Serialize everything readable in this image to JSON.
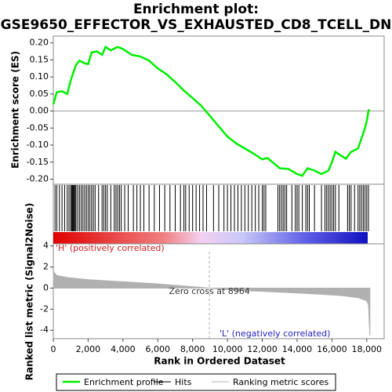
{
  "chart_data": [
    {
      "type": "line",
      "title": [
        "Enrichment plot:",
        "GSE9650_EFFECTOR_VS_EXHAUSTED_CD8_TCELL_DN"
      ],
      "ylabel": "Enrichment score (ES)",
      "x": [
        0,
        200,
        500,
        800,
        1000,
        1300,
        1500,
        1800,
        2000,
        2200,
        2500,
        2800,
        3000,
        3300,
        3700,
        4000,
        4500,
        5000,
        5500,
        6000,
        6500,
        7000,
        7500,
        8000,
        8500,
        9000,
        9500,
        10000,
        10500,
        11000,
        11500,
        12000,
        12300,
        12700,
        13000,
        13500,
        14000,
        14300,
        14600,
        15000,
        15400,
        15800,
        16000,
        16200,
        16500,
        16800,
        17100,
        17500,
        17700,
        17900,
        18000,
        18100,
        18150
      ],
      "series": [
        {
          "name": "Enrichment profile",
          "color": "#00ee00",
          "values": [
            0.02,
            0.055,
            0.058,
            0.05,
            0.09,
            0.135,
            0.148,
            0.14,
            0.138,
            0.172,
            0.175,
            0.165,
            0.188,
            0.178,
            0.188,
            0.182,
            0.165,
            0.16,
            0.148,
            0.125,
            0.108,
            0.085,
            0.06,
            0.038,
            0.015,
            -0.015,
            -0.045,
            -0.075,
            -0.095,
            -0.11,
            -0.125,
            -0.142,
            -0.138,
            -0.155,
            -0.168,
            -0.17,
            -0.185,
            -0.19,
            -0.168,
            -0.175,
            -0.185,
            -0.175,
            -0.15,
            -0.12,
            -0.13,
            -0.14,
            -0.12,
            -0.11,
            -0.08,
            -0.05,
            -0.03,
            0.0,
            0.005
          ]
        }
      ],
      "xlim": [
        0,
        19000
      ],
      "ylim": [
        -0.215,
        0.22
      ],
      "yticks": [
        {
          "value": -0.2,
          "label": "-0.20"
        },
        {
          "value": -0.15,
          "label": "-0.15"
        },
        {
          "value": -0.1,
          "label": "-0.10"
        },
        {
          "value": -0.05,
          "label": "-0.05"
        },
        {
          "value": 0,
          "label": "0.00"
        },
        {
          "value": 0.05,
          "label": "0.05"
        },
        {
          "value": 0.1,
          "label": "0.10"
        },
        {
          "value": 0.15,
          "label": "0.15"
        },
        {
          "value": 0.2,
          "label": "0.20"
        }
      ],
      "zero_line": true
    },
    {
      "type": "hits",
      "x": [
        100,
        200,
        350,
        500,
        650,
        800,
        900,
        1000,
        1050,
        1100,
        1150,
        1200,
        1250,
        1300,
        1400,
        1500,
        1600,
        1700,
        1800,
        1900,
        2000,
        2100,
        2200,
        2300,
        2400,
        2600,
        2800,
        2900,
        3000,
        3100,
        3300,
        3500,
        3600,
        3700,
        3800,
        3900,
        4100,
        4300,
        4600,
        4800,
        5000,
        5200,
        5500,
        5800,
        6100,
        6400,
        6700,
        7000,
        7300,
        7500,
        7600,
        7800,
        8000,
        8200,
        8400,
        8600,
        8800,
        9200,
        9500,
        9800,
        10000,
        10200,
        10400,
        10600,
        10800,
        11000,
        11200,
        11400,
        11600,
        11800,
        12000,
        12100,
        12200,
        12900,
        13000,
        13100,
        13200,
        13300,
        13400,
        13700,
        13900,
        14000,
        14100,
        14300,
        14500,
        14600,
        14700,
        15000,
        15400,
        15600,
        15700,
        15800,
        15900,
        16000,
        16100,
        16200,
        16400,
        16900,
        17000,
        17100,
        17300,
        17500,
        17600,
        17700,
        17800,
        17900,
        18000,
        18100
      ],
      "series": [
        {
          "name": "Hits",
          "color": "#000000"
        }
      ],
      "xlim": [
        0,
        19000
      ]
    },
    {
      "type": "area",
      "xlabel": "Rank in Ordered Dataset",
      "ylabel": "Ranked list metric (Signal2Noise)",
      "x": [
        0,
        200,
        800,
        2000,
        4000,
        6000,
        7500,
        8964,
        10500,
        12500,
        14500,
        16500,
        17500,
        18000,
        18100,
        18180
      ],
      "series": [
        {
          "name": "Ranking metric scores",
          "color": "#b0b0b0",
          "values": [
            1.6,
            1.2,
            1.0,
            0.8,
            0.6,
            0.4,
            0.2,
            0,
            -0.2,
            -0.35,
            -0.5,
            -0.7,
            -0.9,
            -1.2,
            -1.6,
            -4.5
          ]
        }
      ],
      "xlim": [
        0,
        19000
      ],
      "xticks": [
        0,
        {
          "value": 2000,
          "label": "2,000"
        },
        {
          "value": 4000,
          "label": "4,000"
        },
        {
          "value": 6000,
          "label": "6,000"
        },
        {
          "value": 8000,
          "label": "8,000"
        },
        {
          "value": 10000,
          "label": "10,000"
        },
        {
          "value": 12000,
          "label": "12,000"
        },
        {
          "value": 14000,
          "label": "14,000"
        },
        {
          "value": 16000,
          "label": "16,000"
        },
        {
          "value": 18000,
          "label": "18,000"
        }
      ],
      "ylim": [
        -4.8,
        4.2
      ],
      "yticks": [
        -4,
        -2,
        0,
        2,
        4
      ],
      "zero_cross": 8964,
      "annotations": [
        "'H' (positively correlated)",
        "Zero cross at 8964",
        "'L' (negatively correlated)"
      ]
    }
  ]
}
